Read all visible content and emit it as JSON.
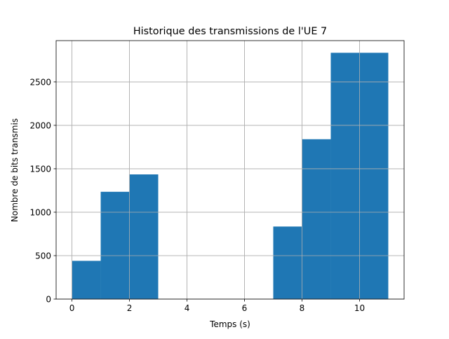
{
  "chart_data": {
    "type": "bar",
    "title": "Historique des transmissions de l'UE 7",
    "xlabel": "Temps (s)",
    "ylabel": "Nombre de bits transmis",
    "xlim": [
      -0.55,
      11.55
    ],
    "ylim": [
      0,
      2975
    ],
    "x_ticks": [
      0,
      2,
      4,
      6,
      8,
      10
    ],
    "y_ticks": [
      0,
      500,
      1000,
      1500,
      2000,
      2500
    ],
    "grid": true,
    "bar_color": "#1f77b4",
    "bar_width": 1,
    "bars": [
      {
        "x_start": 0,
        "x_end": 1,
        "value": 440
      },
      {
        "x_start": 1,
        "x_end": 2,
        "value": 1235
      },
      {
        "x_start": 2,
        "x_end": 3,
        "value": 1435
      },
      {
        "x_start": 3,
        "x_end": 4,
        "value": 0
      },
      {
        "x_start": 4,
        "x_end": 5,
        "value": 0
      },
      {
        "x_start": 5,
        "x_end": 6,
        "value": 0
      },
      {
        "x_start": 6,
        "x_end": 7,
        "value": 0
      },
      {
        "x_start": 7,
        "x_end": 8,
        "value": 835
      },
      {
        "x_start": 8,
        "x_end": 9,
        "value": 1840
      },
      {
        "x_start": 9,
        "x_end": 10,
        "value": 2835
      },
      {
        "x_start": 10,
        "x_end": 11,
        "value": 2835
      }
    ]
  }
}
